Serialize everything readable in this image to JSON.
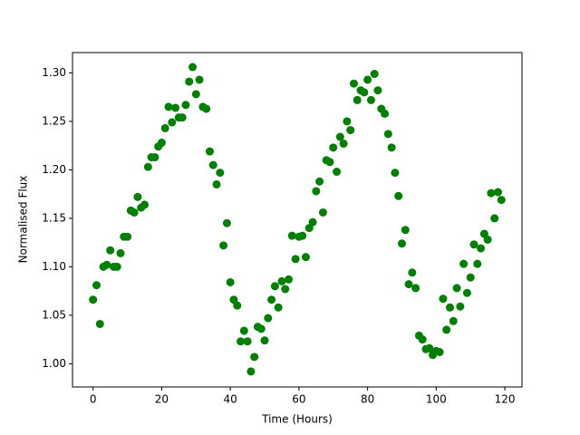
{
  "chart_data": {
    "type": "scatter",
    "xlabel": "Time (Hours)",
    "ylabel": "Normalised Flux",
    "color": "#008000",
    "x": [
      0,
      1,
      2,
      3,
      4,
      5,
      6,
      7,
      8,
      9,
      10,
      11,
      12,
      13,
      14,
      15,
      16,
      17,
      18,
      19,
      20,
      21,
      22,
      23,
      24,
      25,
      26,
      27,
      28,
      29,
      30,
      31,
      32,
      33,
      34,
      35,
      36,
      37,
      38,
      39,
      40,
      41,
      42,
      43,
      44,
      45,
      46,
      47,
      48,
      49,
      50,
      51,
      52,
      53,
      54,
      55,
      56,
      57,
      58,
      59,
      60,
      61,
      62,
      63,
      64,
      65,
      66,
      67,
      68,
      69,
      70,
      71,
      72,
      73,
      74,
      75,
      76,
      77,
      78,
      79,
      80,
      81,
      82,
      83,
      84,
      85,
      86,
      87,
      88,
      89,
      90,
      91,
      92,
      93,
      94,
      95,
      96,
      97,
      98,
      99,
      100,
      101,
      102,
      103,
      104,
      105,
      106,
      107,
      108,
      109,
      110,
      111,
      112,
      113,
      114,
      115,
      116,
      117,
      118,
      119
    ],
    "values": [
      1.066,
      1.081,
      1.041,
      1.1,
      1.102,
      1.117,
      1.1,
      1.1,
      1.114,
      1.131,
      1.131,
      1.158,
      1.156,
      1.172,
      1.161,
      1.164,
      1.203,
      1.213,
      1.213,
      1.224,
      1.228,
      1.243,
      1.265,
      1.249,
      1.264,
      1.254,
      1.254,
      1.267,
      1.291,
      1.306,
      1.278,
      1.293,
      1.265,
      1.263,
      1.219,
      1.205,
      1.185,
      1.197,
      1.122,
      1.145,
      1.084,
      1.066,
      1.06,
      1.023,
      1.034,
      1.023,
      0.992,
      1.007,
      1.038,
      1.036,
      1.024,
      1.047,
      1.066,
      1.08,
      1.058,
      1.085,
      1.077,
      1.087,
      1.132,
      1.108,
      1.131,
      1.132,
      1.11,
      1.14,
      1.146,
      1.178,
      1.188,
      1.156,
      1.21,
      1.208,
      1.223,
      1.198,
      1.234,
      1.227,
      1.25,
      1.241,
      1.289,
      1.272,
      1.282,
      1.28,
      1.293,
      1.272,
      1.299,
      1.282,
      1.263,
      1.258,
      1.237,
      1.223,
      1.197,
      1.173,
      1.124,
      1.138,
      1.082,
      1.094,
      1.078,
      1.029,
      1.025,
      1.015,
      1.016,
      1.009,
      1.013,
      1.012,
      1.067,
      1.035,
      1.058,
      1.044,
      1.078,
      1.059,
      1.103,
      1.073,
      1.089,
      1.123,
      1.103,
      1.119,
      1.134,
      1.128,
      1.176,
      1.15,
      1.177,
      1.169
    ],
    "xlim": [
      -6,
      125
    ],
    "ylim": [
      0.976,
      1.321
    ],
    "xticks": [
      0,
      20,
      40,
      60,
      80,
      100,
      120
    ],
    "yticks": [
      {
        "value": 1.0,
        "label": "1.00"
      },
      1.05,
      {
        "value": 1.1,
        "label": "1.10"
      },
      1.15,
      {
        "value": 1.2,
        "label": "1.20"
      },
      1.25,
      {
        "value": 1.3,
        "label": "1.30"
      }
    ]
  }
}
